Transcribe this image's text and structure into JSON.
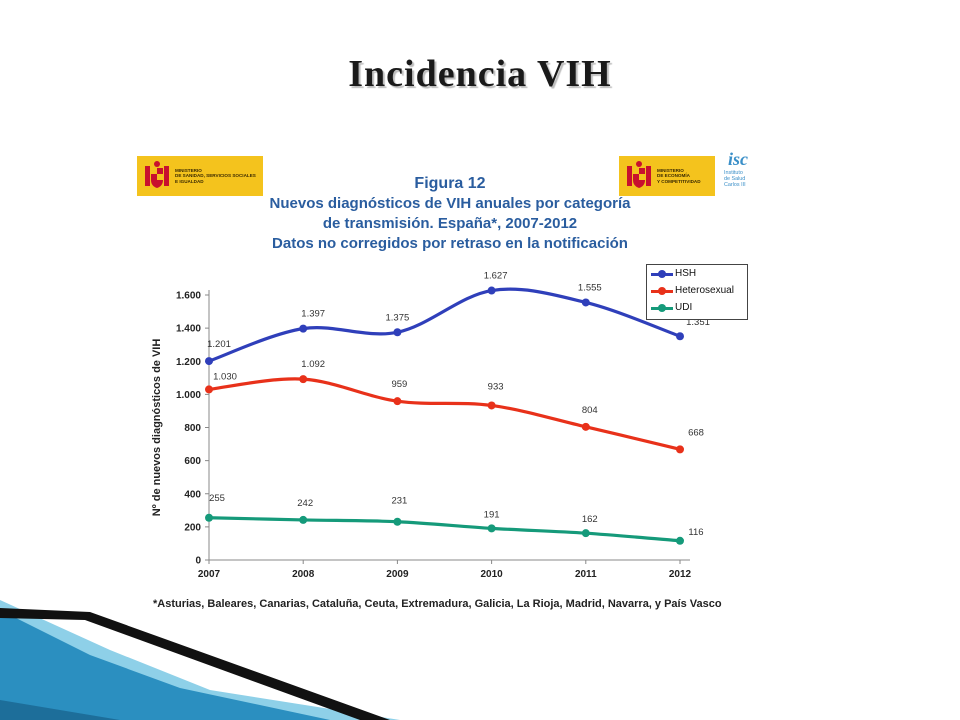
{
  "slide": {
    "title": "Incidencia VIH"
  },
  "logos": {
    "left": {
      "lines": [
        "MINISTERIO",
        "DE SANIDAD, SERVICIOS SOCIALES",
        "E IGUALDAD"
      ]
    },
    "right": {
      "lines": [
        "MINISTERIO",
        "DE ECONOMÍA",
        "Y COMPETITIVIDAD"
      ]
    },
    "isciii": {
      "mark": "isc",
      "lines": [
        "Instituto",
        "de Salud",
        "Carlos III"
      ]
    }
  },
  "figure": {
    "label": "Figura 12",
    "lines": [
      "Nuevos diagnósticos de VIH anuales por categoría",
      "de transmisión. España*, 2007-2012",
      "Datos no corregidos por retraso en la notificación"
    ],
    "footnote": "*Asturias, Baleares, Canarias, Cataluña, Ceuta, Extremadura, Galicia, La Rioja, Madrid, Navarra, y País Vasco"
  },
  "chart_data": {
    "type": "line",
    "x": [
      2007,
      2008,
      2009,
      2010,
      2011,
      2012
    ],
    "x_tick_labels": [
      "2007",
      "2008",
      "2009",
      "2010",
      "2011",
      "2012"
    ],
    "ylabel": "Nº de nuevos diagnósticos de VIH",
    "ylim": [
      0,
      1600
    ],
    "y_ticks": [
      0,
      200,
      400,
      600,
      800,
      1000,
      1200,
      1400,
      1600
    ],
    "y_tick_labels": [
      "0",
      "200",
      "400",
      "600",
      "800",
      "1.000",
      "1.200",
      "1.400",
      "1.600"
    ],
    "legend_position": "top-right",
    "series": [
      {
        "name": "HSH",
        "color": "#2f3fba",
        "values": [
          1201,
          1397,
          1375,
          1627,
          1555,
          1351
        ],
        "labels": [
          "1.201",
          "1.397",
          "1.375",
          "1.627",
          "1.555",
          "1.351"
        ]
      },
      {
        "name": "Heterosexual",
        "color": "#e8311a",
        "values": [
          1030,
          1092,
          959,
          933,
          804,
          668
        ],
        "labels": [
          "1.030",
          "1.092",
          "959",
          "933",
          "804",
          "668"
        ]
      },
      {
        "name": "UDI",
        "color": "#159a7a",
        "values": [
          255,
          242,
          231,
          191,
          162,
          116
        ],
        "labels": [
          "255",
          "242",
          "231",
          "191",
          "162",
          "116"
        ]
      }
    ]
  },
  "colors": {
    "title_blue": "#2a5d9f",
    "logo_yellow": "#f4c31d",
    "deco_teal": "#2b8fc0",
    "deco_dark": "#111111"
  }
}
